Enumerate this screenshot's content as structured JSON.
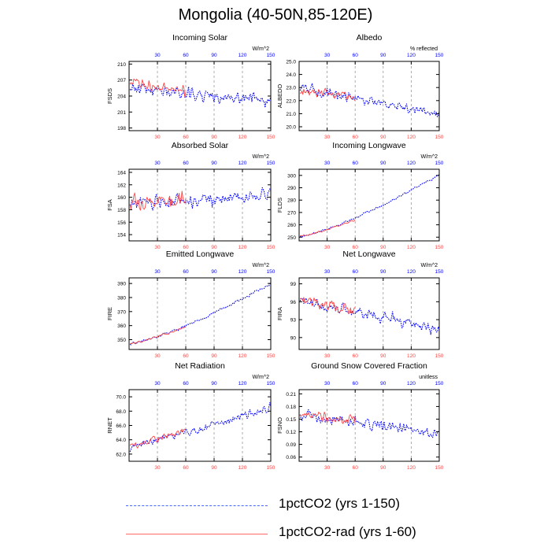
{
  "title": "Mongolia (40-50N,85-120E)",
  "colors": {
    "blue": "#0000ff",
    "red": "#ff4444",
    "axis": "#000000",
    "grid": "#999999"
  },
  "legend": [
    {
      "label": "1pctCO2 (yrs 1-150)",
      "style": "dashed",
      "color": "#4466ff"
    },
    {
      "label": "1pctCO2-rad (yrs 1-60)",
      "style": "solid",
      "color": "#ff6666"
    }
  ],
  "chart_data": [
    {
      "type": "line",
      "title": "Incoming Solar",
      "ylabel": "FSDS",
      "units": "W/m^2",
      "ylim": [
        197.5,
        210.5
      ],
      "yticks": [
        "198",
        "201",
        "204",
        "207",
        "210"
      ],
      "ytick_values": [
        198,
        201,
        204,
        207,
        210
      ],
      "xlim": [
        0,
        150
      ],
      "xticks": [
        "30",
        "60",
        "90",
        "120",
        "150"
      ],
      "xtick_values": [
        30,
        60,
        90,
        120,
        150
      ],
      "series": [
        {
          "color": "blue",
          "x_range": [
            1,
            150
          ],
          "trend": [
            205.5,
            203.0
          ],
          "noise": 2.4,
          "seed": 11
        },
        {
          "color": "red",
          "x_range": [
            1,
            60
          ],
          "trend": [
            206.5,
            205.0
          ],
          "noise": 2.0,
          "seed": 12
        }
      ]
    },
    {
      "type": "line",
      "title": "Albedo",
      "ylabel": "ALBEDO",
      "units": "% reflected",
      "ylim": [
        19.7,
        25.0
      ],
      "yticks": [
        "20.0",
        "21.0",
        "22.0",
        "23.0",
        "24.0",
        "25.0"
      ],
      "ytick_values": [
        20,
        21,
        22,
        23,
        24,
        25
      ],
      "xlim": [
        0,
        150
      ],
      "xticks": [
        "30",
        "60",
        "90",
        "120",
        "150"
      ],
      "xtick_values": [
        30,
        60,
        90,
        120,
        150
      ],
      "series": [
        {
          "color": "blue",
          "x_range": [
            1,
            150
          ],
          "trend": [
            23.0,
            20.9
          ],
          "noise": 0.7,
          "seed": 21
        },
        {
          "color": "red",
          "x_range": [
            1,
            60
          ],
          "trend": [
            22.8,
            22.3
          ],
          "noise": 0.6,
          "seed": 22
        }
      ]
    },
    {
      "type": "line",
      "title": "Absorbed Solar",
      "ylabel": "FSA",
      "units": "W/m^2",
      "ylim": [
        153.0,
        164.5
      ],
      "yticks": [
        "154",
        "156",
        "158",
        "160",
        "162",
        "164"
      ],
      "ytick_values": [
        154,
        156,
        158,
        160,
        162,
        164
      ],
      "xlim": [
        0,
        150
      ],
      "xticks": [
        "30",
        "60",
        "90",
        "120",
        "150"
      ],
      "xtick_values": [
        30,
        60,
        90,
        120,
        150
      ],
      "series": [
        {
          "color": "blue",
          "x_range": [
            1,
            150
          ],
          "trend": [
            159.0,
            160.2
          ],
          "noise": 2.0,
          "seed": 31
        },
        {
          "color": "red",
          "x_range": [
            1,
            60
          ],
          "trend": [
            159.3,
            159.7
          ],
          "noise": 2.3,
          "seed": 32
        }
      ]
    },
    {
      "type": "line",
      "title": "Incoming Longwave",
      "ylabel": "FLDS",
      "units": "W/m^2",
      "ylim": [
        247.0,
        305.0
      ],
      "yticks": [
        "250",
        "260",
        "270",
        "280",
        "290",
        "300"
      ],
      "ytick_values": [
        250,
        260,
        270,
        280,
        290,
        300
      ],
      "xlim": [
        0,
        150
      ],
      "xticks": [
        "30",
        "60",
        "90",
        "120",
        "150"
      ],
      "xtick_values": [
        30,
        60,
        90,
        120,
        150
      ],
      "series": [
        {
          "color": "blue",
          "x_range": [
            1,
            150
          ],
          "trend": [
            250.5,
            300.5
          ],
          "noise": 1.8,
          "seed": 41,
          "curve": 1.3
        },
        {
          "color": "red",
          "x_range": [
            1,
            60
          ],
          "trend": [
            250.5,
            264.0
          ],
          "noise": 1.6,
          "seed": 42,
          "curve": 1.2
        }
      ]
    },
    {
      "type": "line",
      "title": "Emitted Longwave",
      "ylabel": "FIRE",
      "units": "W/m^2",
      "ylim": [
        343.0,
        394.0
      ],
      "yticks": [
        "350",
        "360",
        "370",
        "380",
        "390"
      ],
      "ytick_values": [
        350,
        360,
        370,
        380,
        390
      ],
      "xlim": [
        0,
        150
      ],
      "xticks": [
        "30",
        "60",
        "90",
        "120",
        "150"
      ],
      "xtick_values": [
        30,
        60,
        90,
        120,
        150
      ],
      "series": [
        {
          "color": "blue",
          "x_range": [
            1,
            150
          ],
          "trend": [
            347.0,
            390.0
          ],
          "noise": 1.8,
          "seed": 51,
          "curve": 1.3
        },
        {
          "color": "red",
          "x_range": [
            1,
            60
          ],
          "trend": [
            347.0,
            359.0
          ],
          "noise": 1.6,
          "seed": 52,
          "curve": 1.2
        }
      ]
    },
    {
      "type": "line",
      "title": "Net Longwave",
      "ylabel": "FIRA",
      "units": "W/m^2",
      "ylim": [
        88.0,
        100.0
      ],
      "yticks": [
        "90",
        "93",
        "96",
        "99"
      ],
      "ytick_values": [
        90,
        93,
        96,
        99
      ],
      "xlim": [
        0,
        150
      ],
      "xticks": [
        "30",
        "60",
        "90",
        "120",
        "150"
      ],
      "xtick_values": [
        30,
        60,
        90,
        120,
        150
      ],
      "series": [
        {
          "color": "blue",
          "x_range": [
            1,
            150
          ],
          "trend": [
            96.0,
            91.5
          ],
          "noise": 1.9,
          "seed": 61
        },
        {
          "color": "red",
          "x_range": [
            1,
            60
          ],
          "trend": [
            96.5,
            94.5
          ],
          "noise": 1.7,
          "seed": 62
        }
      ]
    },
    {
      "type": "line",
      "title": "Net Radiation",
      "ylabel": "RNET",
      "units": "W/m^2",
      "ylim": [
        61.0,
        71.0
      ],
      "yticks": [
        "62.0",
        "64.0",
        "66.0",
        "68.0",
        "70.0"
      ],
      "ytick_values": [
        62,
        64,
        66,
        68,
        70
      ],
      "xlim": [
        0,
        150
      ],
      "xticks": [
        "30",
        "60",
        "90",
        "120",
        "150"
      ],
      "xtick_values": [
        30,
        60,
        90,
        120,
        150
      ],
      "series": [
        {
          "color": "blue",
          "x_range": [
            1,
            150
          ],
          "trend": [
            63.0,
            68.3
          ],
          "noise": 1.1,
          "seed": 71
        },
        {
          "color": "red",
          "x_range": [
            1,
            60
          ],
          "trend": [
            63.0,
            65.3
          ],
          "noise": 1.0,
          "seed": 72
        }
      ]
    },
    {
      "type": "line",
      "title": "Ground Snow Covered Fraction",
      "ylabel": "FSNO",
      "units": "unitless",
      "ylim": [
        0.05,
        0.22
      ],
      "yticks": [
        "0.06",
        "0.09",
        "0.12",
        "0.15",
        "0.18",
        "0.21"
      ],
      "ytick_values": [
        0.06,
        0.09,
        0.12,
        0.15,
        0.18,
        0.21
      ],
      "xlim": [
        0,
        150
      ],
      "xticks": [
        "30",
        "60",
        "90",
        "120",
        "150"
      ],
      "xtick_values": [
        30,
        60,
        90,
        120,
        150
      ],
      "series": [
        {
          "color": "blue",
          "x_range": [
            1,
            150
          ],
          "trend": [
            0.16,
            0.115
          ],
          "noise": 0.03,
          "seed": 81
        },
        {
          "color": "red",
          "x_range": [
            1,
            60
          ],
          "trend": [
            0.16,
            0.145
          ],
          "noise": 0.025,
          "seed": 82
        }
      ]
    }
  ]
}
